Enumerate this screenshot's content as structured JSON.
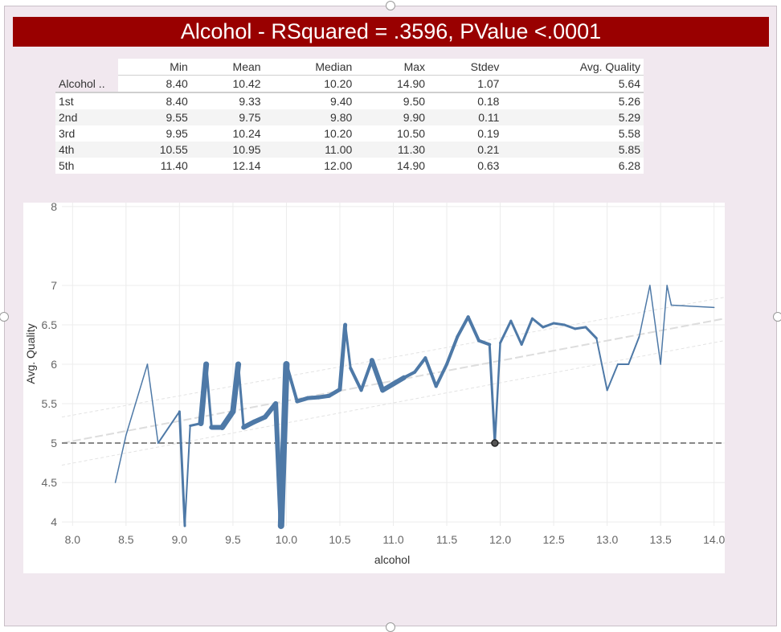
{
  "title": "Alcohol - RSquared = .3596, PValue <.0001",
  "table": {
    "row_header": "Alcohol ..",
    "columns": [
      "Min",
      "Mean",
      "Median",
      "Max",
      "Stdev",
      "Avg. Quality"
    ],
    "overall": [
      "8.40",
      "10.42",
      "10.20",
      "14.90",
      "1.07",
      "5.64"
    ],
    "rows": [
      {
        "label": "1st",
        "values": [
          "8.40",
          "9.33",
          "9.40",
          "9.50",
          "0.18",
          "5.26"
        ]
      },
      {
        "label": "2nd",
        "values": [
          "9.55",
          "9.75",
          "9.80",
          "9.90",
          "0.11",
          "5.29"
        ]
      },
      {
        "label": "3rd",
        "values": [
          "9.95",
          "10.24",
          "10.20",
          "10.50",
          "0.19",
          "5.58"
        ]
      },
      {
        "label": "4th",
        "values": [
          "10.55",
          "10.95",
          "11.00",
          "11.30",
          "0.21",
          "5.85"
        ]
      },
      {
        "label": "5th",
        "values": [
          "11.40",
          "12.14",
          "12.00",
          "14.90",
          "0.63",
          "6.28"
        ]
      }
    ]
  },
  "chart_data": {
    "type": "line",
    "title": "",
    "xlabel": "alcohol",
    "ylabel": "Avg. Quality",
    "xlim": [
      7.9,
      14.1
    ],
    "ylim": [
      3.95,
      8.05
    ],
    "x_ticks": [
      "8.0",
      "8.5",
      "9.0",
      "9.5",
      "10.0",
      "10.5",
      "11.0",
      "11.5",
      "12.0",
      "12.5",
      "13.0",
      "13.5",
      "14.0"
    ],
    "y_ticks": [
      "4",
      "4.5",
      "5",
      "5.5",
      "6",
      "6.5",
      "7",
      "8"
    ],
    "grid": true,
    "series_color": "#4e79a7",
    "reference_line": {
      "y": 5.0,
      "style": "dashed",
      "color": "#888888"
    },
    "trend_line": {
      "x": [
        7.9,
        14.1
      ],
      "y": [
        5.0,
        6.58
      ],
      "color": "#dddddd"
    },
    "confidence_band": {
      "x": [
        7.9,
        14.1
      ],
      "upper": [
        5.33,
        6.85
      ],
      "lower": [
        4.72,
        6.3
      ],
      "color": "#e3e3e3"
    },
    "highlight_point": {
      "x": 11.95,
      "y": 5.0
    },
    "series": [
      {
        "x": [
          8.4,
          8.5,
          8.7,
          8.8,
          9.0,
          9.05,
          9.1,
          9.2,
          9.25,
          9.3,
          9.4,
          9.5,
          9.55,
          9.6,
          9.7,
          9.8,
          9.9,
          9.95,
          10.0,
          10.1,
          10.2,
          10.3,
          10.4,
          10.5,
          10.55,
          10.6,
          10.7,
          10.8,
          10.9,
          11.0,
          11.1,
          11.2,
          11.3,
          11.4,
          11.5,
          11.6,
          11.7,
          11.8,
          11.9,
          11.95,
          12.0,
          12.1,
          12.2,
          12.3,
          12.4,
          12.5,
          12.6,
          12.7,
          12.8,
          12.9,
          13.0,
          13.1,
          13.2,
          13.3,
          13.4,
          13.5,
          13.56,
          13.6,
          14.0
        ],
        "y": [
          4.5,
          5.1,
          6.0,
          5.0,
          5.4,
          3.95,
          5.22,
          5.25,
          6.0,
          5.2,
          5.2,
          5.4,
          6.0,
          5.2,
          5.27,
          5.33,
          5.5,
          3.95,
          6.0,
          5.53,
          5.57,
          5.58,
          5.6,
          5.68,
          6.5,
          5.95,
          5.67,
          6.05,
          5.67,
          5.75,
          5.83,
          5.9,
          6.08,
          5.72,
          6.0,
          6.35,
          6.6,
          6.3,
          6.25,
          5.0,
          6.27,
          6.55,
          6.25,
          6.58,
          6.47,
          6.52,
          6.5,
          6.45,
          6.47,
          6.33,
          5.67,
          6.0,
          6.0,
          6.35,
          7.0,
          6.0,
          7.0,
          6.75,
          6.72
        ],
        "w": [
          1.5,
          1.5,
          1.5,
          2,
          3,
          2,
          3,
          7,
          3,
          6,
          7,
          7,
          3,
          6,
          6,
          6,
          6,
          8,
          4,
          5,
          5,
          5,
          5,
          5,
          3,
          4,
          4,
          6,
          6,
          6,
          4,
          4,
          4,
          4,
          4,
          4,
          4,
          4,
          3,
          2.5,
          3,
          3,
          3,
          3,
          3,
          3,
          3,
          3,
          3,
          2,
          2,
          2,
          2,
          1.5,
          1.5,
          1.5,
          1.5,
          1.5,
          1.5
        ]
      }
    ]
  }
}
